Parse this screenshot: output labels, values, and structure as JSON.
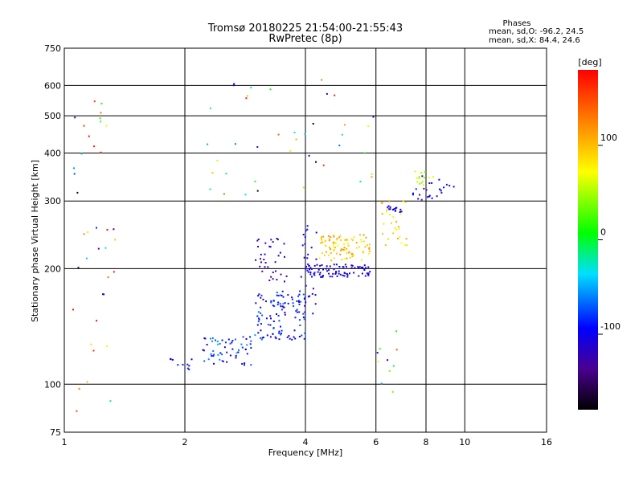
{
  "chart_data": {
    "type": "scatter",
    "title": "Tromsø 20180225 21:54:00-21:55:43",
    "subtitle": "RwPretec (8p)",
    "xlabel": "Frequency [MHz]",
    "ylabel": "Stationary phase Virtual Height [km]",
    "xscale": "log",
    "yscale": "log",
    "xlim": [
      1,
      16
    ],
    "ylim": [
      75,
      750
    ],
    "x_ticks": [
      1,
      2,
      4,
      6,
      8,
      10,
      16
    ],
    "y_ticks": [
      75,
      100,
      200,
      300,
      400,
      500,
      600,
      750
    ],
    "grid": true,
    "legend": {
      "title": "Phases",
      "lines": [
        "mean, sd,O: -96.2, 24.5",
        "mean, sd,X:  84.4, 24.6"
      ]
    },
    "colorbar": {
      "label": "[deg]",
      "range": [
        -180,
        180
      ],
      "ticks": [
        100,
        0,
        -100
      ]
    },
    "clusters": [
      {
        "x": [
          1.05,
          1.35
        ],
        "y": [
          80,
          620
        ],
        "n": 40,
        "phase": [
          -180,
          180
        ]
      },
      {
        "x": [
          1.8,
          2.1
        ],
        "y": [
          108,
          118
        ],
        "n": 10,
        "phase": [
          -110,
          -80
        ]
      },
      {
        "x": [
          2.2,
          3.0
        ],
        "y": [
          112,
          135
        ],
        "n": 60,
        "phase": [
          -120,
          -40
        ]
      },
      {
        "x": [
          3.0,
          4.0
        ],
        "y": [
          130,
          175
        ],
        "n": 110,
        "phase": [
          -130,
          -60
        ]
      },
      {
        "x": [
          3.0,
          3.6
        ],
        "y": [
          185,
          240
        ],
        "n": 35,
        "phase": [
          -140,
          -100
        ]
      },
      {
        "x": [
          3.9,
          4.3
        ],
        "y": [
          150,
          260
        ],
        "n": 30,
        "phase": [
          -120,
          -90
        ]
      },
      {
        "x": [
          4.0,
          5.8
        ],
        "y": [
          190,
          205
        ],
        "n": 80,
        "phase": [
          -120,
          -90
        ]
      },
      {
        "x": [
          4.3,
          5.8
        ],
        "y": [
          210,
          245
        ],
        "n": 90,
        "phase": [
          70,
          120
        ]
      },
      {
        "x": [
          6.2,
          7.2
        ],
        "y": [
          230,
          300
        ],
        "n": 30,
        "phase": [
          60,
          120
        ]
      },
      {
        "x": [
          6.4,
          7.0
        ],
        "y": [
          280,
          292
        ],
        "n": 14,
        "phase": [
          -120,
          -90
        ]
      },
      {
        "x": [
          7.4,
          9.5
        ],
        "y": [
          300,
          350
        ],
        "n": 25,
        "phase": [
          -130,
          -80
        ]
      },
      {
        "x": [
          7.5,
          8.5
        ],
        "y": [
          330,
          360
        ],
        "n": 15,
        "phase": [
          30,
          90
        ]
      },
      {
        "x": [
          2.0,
          6.0
        ],
        "y": [
          300,
          620
        ],
        "n": 40,
        "phase": [
          -180,
          180
        ]
      },
      {
        "x": [
          6.0,
          7.0
        ],
        "y": [
          95,
          140
        ],
        "n": 10,
        "phase": [
          -140,
          160
        ]
      }
    ]
  }
}
